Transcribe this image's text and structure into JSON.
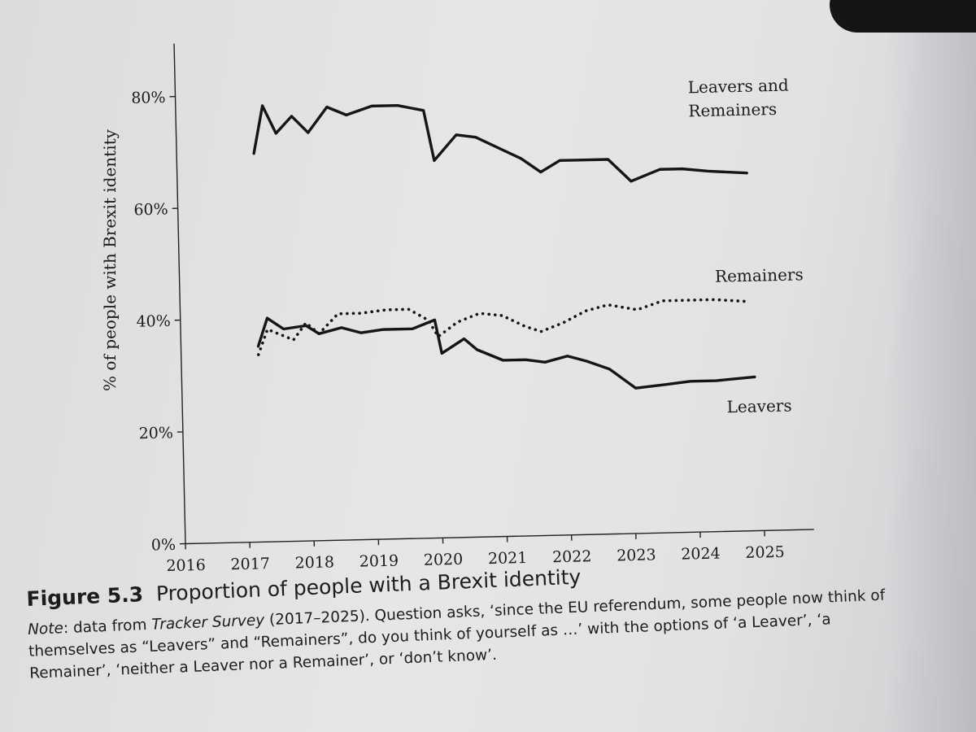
{
  "chart_data": {
    "type": "line",
    "title": "",
    "xlabel": "",
    "ylabel": "% of people with Brexit identity",
    "xlim": [
      2016,
      2025.2
    ],
    "ylim": [
      0,
      80
    ],
    "x_ticks": [
      "2016",
      "2017",
      "2018",
      "2019",
      "2020",
      "2021",
      "2022",
      "2023",
      "2024",
      "2025"
    ],
    "y_ticks": [
      "0%",
      "20%",
      "40%",
      "60%",
      "80%"
    ],
    "grid": false,
    "legend": "inline labels at right",
    "series": [
      {
        "name": "Leavers and Remainers",
        "style": "solid",
        "x": [
          2017.2,
          2017.35,
          2017.55,
          2017.8,
          2018.05,
          2018.35,
          2018.65,
          2019.05,
          2019.45,
          2019.85,
          2020.0,
          2020.35,
          2020.65,
          2021.0,
          2021.35,
          2021.65,
          2021.95,
          2022.25,
          2022.7,
          2023.05,
          2023.5,
          2023.85,
          2024.25,
          2024.85
        ],
        "values": [
          69.5,
          78,
          73,
          76,
          73,
          77.5,
          76,
          77.5,
          77.5,
          76.5,
          67.5,
          72,
          71.5,
          69.5,
          67.5,
          65,
          67,
          67,
          67,
          63,
          65,
          65,
          64.5,
          64
        ],
        "label_lines": [
          "Leavers and",
          "Remainers"
        ]
      },
      {
        "name": "Remainers",
        "style": "dotted",
        "x": [
          2017.2,
          2017.35,
          2017.55,
          2017.75,
          2017.95,
          2018.15,
          2018.45,
          2018.8,
          2019.2,
          2019.55,
          2019.85,
          2020.0,
          2020.3,
          2020.65,
          2021.0,
          2021.35,
          2021.6,
          2021.95,
          2022.3,
          2022.65,
          2023.1,
          2023.5,
          2023.9,
          2024.3,
          2024.85
        ],
        "values": [
          33.5,
          38,
          37,
          36,
          39,
          37,
          40.5,
          40.5,
          41,
          41,
          39,
          36,
          38.5,
          40,
          39.5,
          37.5,
          36.5,
          38,
          40,
          41,
          40,
          41.5,
          41.5,
          41.5,
          41
        ],
        "label_lines": [
          "Remainers"
        ]
      },
      {
        "name": "Leavers",
        "style": "solid",
        "x": [
          2017.2,
          2017.35,
          2017.6,
          2017.95,
          2018.15,
          2018.5,
          2018.8,
          2019.15,
          2019.6,
          2019.95,
          2020.05,
          2020.4,
          2020.6,
          2021.0,
          2021.35,
          2021.65,
          2022.0,
          2022.3,
          2022.65,
          2023.05,
          2023.5,
          2023.9,
          2024.3,
          2024.9
        ],
        "values": [
          35,
          40,
          38,
          38.5,
          37,
          38,
          37,
          37.5,
          37.5,
          39,
          33,
          35.5,
          33.5,
          31.5,
          31.5,
          31,
          32,
          31,
          29.5,
          26,
          26.5,
          27,
          27,
          27.5
        ],
        "label_lines": [
          "Leavers"
        ]
      }
    ]
  },
  "caption": {
    "figure_number": "Figure 5.3",
    "figure_title": "Proportion of people with a Brexit identity",
    "note_label": "Note",
    "note_intro": ": data from ",
    "note_source": "Tracker Survey",
    "note_text": " (2017–2025). Question asks, ‘since the EU referendum, some people now think of themselves as “Leavers” and “Remainers”, do you think of yourself as …’ with the options of ‘a Leaver’, ‘a Remainer’, ‘neither a Leaver nor a Remainer’, or ‘don’t know’."
  }
}
